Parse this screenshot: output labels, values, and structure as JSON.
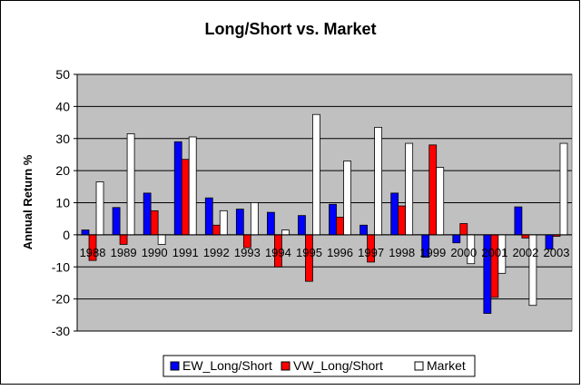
{
  "chart_data": {
    "type": "bar",
    "title": "Long/Short vs. Market",
    "ylabel": "Annual Return %",
    "xlabel": "",
    "ylim": [
      -30,
      50
    ],
    "y_ticks": [
      50,
      40,
      30,
      20,
      10,
      0,
      -10,
      -20,
      -30
    ],
    "grid": true,
    "legend_position": "bottom",
    "categories": [
      "1988",
      "1989",
      "1990",
      "1991",
      "1992",
      "1993",
      "1994",
      "1995",
      "1996",
      "1997",
      "1998",
      "1999",
      "2000",
      "2001",
      "2002",
      "2003"
    ],
    "series": [
      {
        "name": "EW_Long/Short",
        "color": "#0000ff",
        "values": [
          1.5,
          8.5,
          13,
          29,
          11.5,
          8,
          7,
          6,
          9.5,
          3,
          13,
          -7,
          -2.5,
          -24.5,
          8.7,
          -4.5
        ]
      },
      {
        "name": "VW_Long/Short",
        "color": "#ff0000",
        "values": [
          -8,
          -3,
          7.5,
          23.5,
          3,
          -4,
          -10,
          -14.5,
          5.5,
          -8.5,
          9,
          28,
          3.5,
          -19.5,
          -1,
          -0.5
        ]
      },
      {
        "name": "Market",
        "color": "#ffffff",
        "values": [
          16.5,
          31.5,
          -3,
          30.5,
          7.5,
          10,
          1.5,
          37.5,
          23,
          33.5,
          28.5,
          21,
          -9,
          -12,
          -22,
          28.5
        ]
      }
    ]
  }
}
